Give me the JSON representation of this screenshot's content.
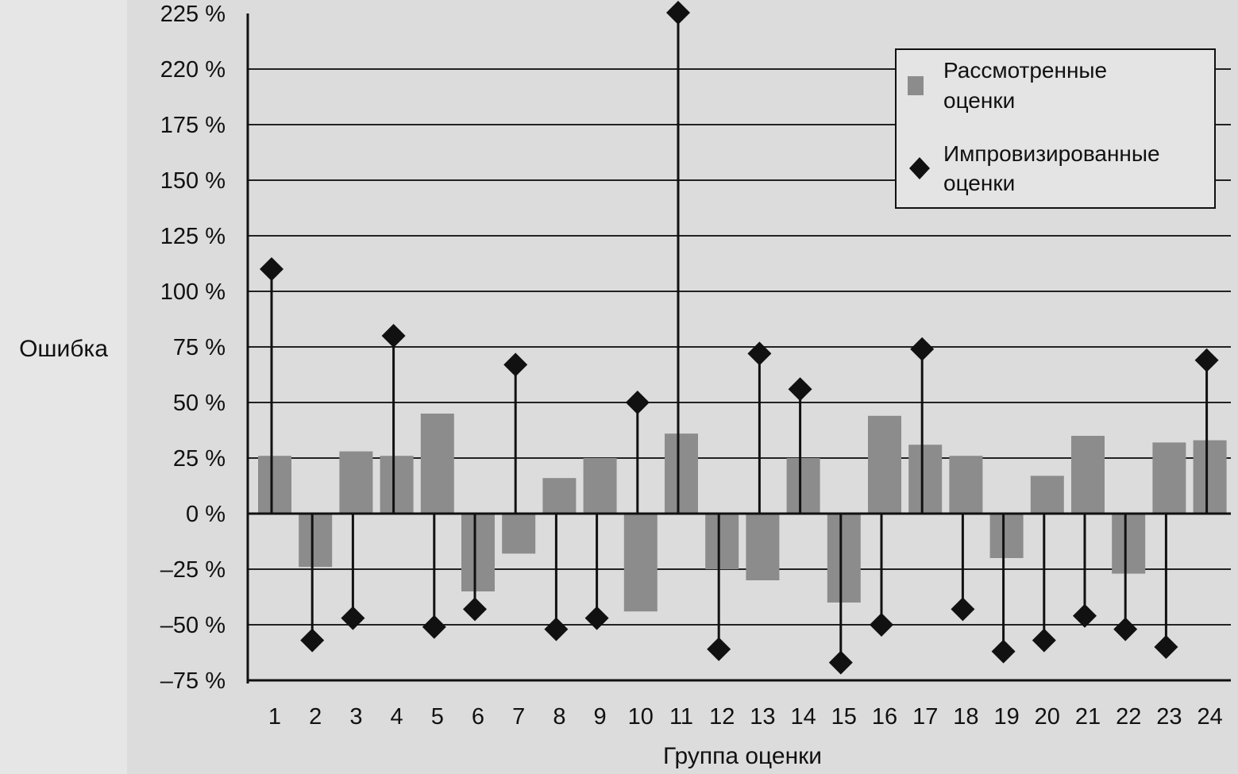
{
  "chart_data": {
    "type": "bar",
    "categories": [
      "1",
      "2",
      "3",
      "4",
      "5",
      "6",
      "7",
      "8",
      "9",
      "10",
      "11",
      "12",
      "13",
      "14",
      "15",
      "16",
      "17",
      "18",
      "19",
      "20",
      "21",
      "22",
      "23",
      "24"
    ],
    "xlabel": "Группа оценки",
    "ylabel": "Ошибка",
    "y_tick_labels": [
      "225 %",
      "220 %",
      "175 %",
      "150 %",
      "125 %",
      "100 %",
      "75 %",
      "50 %",
      "25 %",
      "0 %",
      "–25 %",
      "–50 %",
      "–75 %"
    ],
    "ylim": [
      -75,
      225
    ],
    "grid": true,
    "legend_position": "top-right",
    "series": [
      {
        "name": "Рассмотренные оценки",
        "type": "bar",
        "color": "#8c8c8c",
        "values": [
          26,
          -24,
          28,
          26,
          45,
          -35,
          -18,
          16,
          25,
          -44,
          36,
          -25,
          -30,
          25,
          -40,
          44,
          31,
          26,
          -20,
          17,
          35,
          -27,
          32,
          33
        ]
      },
      {
        "name": "Импровизированные оценки",
        "type": "scatter",
        "marker": "diamond",
        "color": "#111111",
        "values": [
          110,
          -57,
          -47,
          80,
          -51,
          -43,
          67,
          -52,
          -47,
          50,
          227,
          -61,
          72,
          56,
          -67,
          -50,
          74,
          -43,
          -62,
          -57,
          -46,
          -52,
          -60,
          69
        ]
      }
    ]
  }
}
